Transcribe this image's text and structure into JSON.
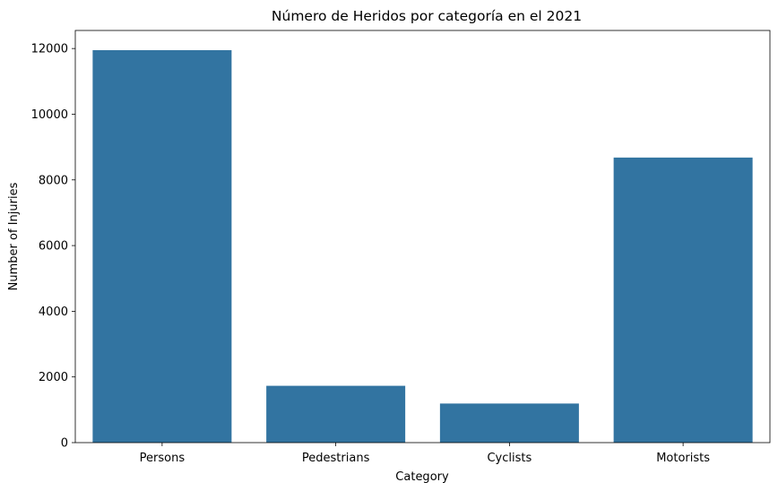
{
  "chart_data": {
    "type": "bar",
    "title": "Número de Heridos por categoría en el 2021",
    "xlabel": "Category",
    "ylabel": "Number of Injuries",
    "categories": [
      "Persons",
      "Pedestrians",
      "Cyclists",
      "Motorists"
    ],
    "values": [
      11950,
      1730,
      1190,
      8680
    ],
    "ylim": [
      0,
      12550
    ],
    "yticks": [
      0,
      2000,
      4000,
      6000,
      8000,
      10000,
      12000
    ],
    "ytick_labels": [
      "0",
      "2000",
      "4000",
      "6000",
      "8000",
      "10000",
      "12000"
    ],
    "grid": false,
    "bar_color": "#3274a1"
  }
}
